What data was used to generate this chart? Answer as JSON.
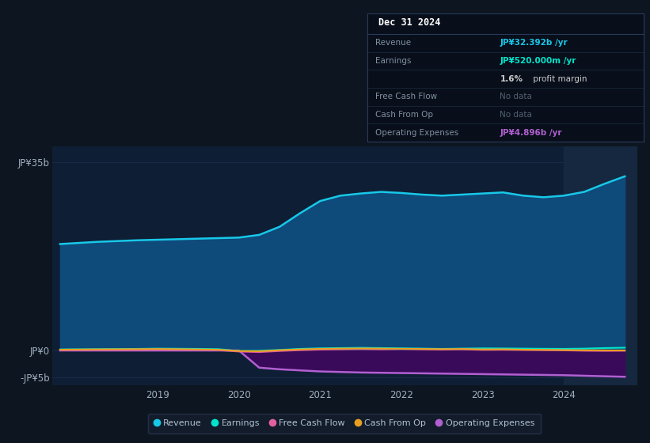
{
  "background_color": "#0d1520",
  "chart_area_color": "#0e1e35",
  "highlight_area_color": "#152840",
  "grid_color": "#1a3050",
  "years": [
    2017.8,
    2018.25,
    2018.75,
    2019.0,
    2019.5,
    2019.75,
    2020.0,
    2020.25,
    2020.5,
    2020.75,
    2021.0,
    2021.25,
    2021.5,
    2021.75,
    2022.0,
    2022.25,
    2022.5,
    2022.75,
    2023.0,
    2023.25,
    2023.5,
    2023.75,
    2024.0,
    2024.25,
    2024.5,
    2024.75
  ],
  "revenue": [
    19.8,
    20.2,
    20.5,
    20.6,
    20.8,
    20.9,
    21.0,
    21.5,
    23.0,
    25.5,
    27.8,
    28.8,
    29.2,
    29.5,
    29.3,
    29.0,
    28.8,
    29.0,
    29.2,
    29.4,
    28.8,
    28.5,
    28.8,
    29.5,
    31.0,
    32.392
  ],
  "earnings": [
    0.2,
    0.25,
    0.3,
    0.35,
    0.3,
    0.25,
    -0.1,
    -0.05,
    0.1,
    0.3,
    0.4,
    0.45,
    0.5,
    0.45,
    0.4,
    0.35,
    0.3,
    0.35,
    0.4,
    0.38,
    0.35,
    0.32,
    0.3,
    0.35,
    0.45,
    0.52
  ],
  "free_cash_flow": [
    0.05,
    0.08,
    0.1,
    0.15,
    0.1,
    0.05,
    -0.2,
    -0.3,
    -0.1,
    0.05,
    0.15,
    0.2,
    0.25,
    0.2,
    0.25,
    0.2,
    0.15,
    0.2,
    0.1,
    0.12,
    0.08,
    0.05,
    0.02,
    -0.05,
    -0.08,
    -0.05
  ],
  "cash_from_op": [
    0.15,
    0.2,
    0.25,
    0.28,
    0.2,
    0.15,
    -0.1,
    -0.15,
    0.05,
    0.2,
    0.3,
    0.35,
    0.38,
    0.35,
    0.32,
    0.28,
    0.25,
    0.28,
    0.2,
    0.22,
    0.15,
    0.12,
    0.08,
    0.05,
    0.02,
    0.0
  ],
  "op_expenses": [
    0.0,
    0.0,
    0.0,
    0.0,
    0.0,
    0.0,
    0.0,
    -3.2,
    -3.5,
    -3.7,
    -3.9,
    -4.0,
    -4.1,
    -4.15,
    -4.2,
    -4.25,
    -4.3,
    -4.35,
    -4.4,
    -4.45,
    -4.5,
    -4.55,
    -4.6,
    -4.7,
    -4.8,
    -4.896
  ],
  "revenue_color": "#18c8e8",
  "revenue_fill": "#0e4a7a",
  "earnings_color": "#00e5cc",
  "free_cash_flow_color": "#e060a0",
  "cash_from_op_color": "#e8a020",
  "op_expenses_color": "#b060d0",
  "op_expenses_fill": "#3a0a5a",
  "highlight_start": 2024.0,
  "ylim": [
    -6.5,
    38
  ],
  "yticks": [
    -5,
    0,
    35
  ],
  "ytick_labels": [
    "-JP¥5b",
    "JP¥0",
    "JP¥35b"
  ],
  "xticks": [
    2019,
    2020,
    2021,
    2022,
    2023,
    2024
  ],
  "infobox": {
    "title": "Dec 31 2024",
    "title_color": "#ffffff",
    "bg_color": "#080e1a",
    "border_color": "#2a3a5a",
    "rows": [
      {
        "label": "Revenue",
        "value": "JP¥32.392b /yr",
        "value_color": "#18c8e8",
        "label_color": "#8090a0"
      },
      {
        "label": "Earnings",
        "value": "JP¥520.000m /yr",
        "value_color": "#00e5cc",
        "label_color": "#8090a0"
      },
      {
        "label": "",
        "value": "1.6% profit margin",
        "value_color": "#cccccc",
        "label_color": "#8090a0",
        "bold_prefix": "1.6%"
      },
      {
        "label": "Free Cash Flow",
        "value": "No data",
        "value_color": "#506070",
        "label_color": "#8090a0"
      },
      {
        "label": "Cash From Op",
        "value": "No data",
        "value_color": "#506070",
        "label_color": "#8090a0"
      },
      {
        "label": "Operating Expenses",
        "value": "JP¥4.896b /yr",
        "value_color": "#b060d0",
        "label_color": "#8090a0"
      }
    ]
  },
  "legend": [
    {
      "label": "Revenue",
      "color": "#18c8e8"
    },
    {
      "label": "Earnings",
      "color": "#00e5cc"
    },
    {
      "label": "Free Cash Flow",
      "color": "#e060a0"
    },
    {
      "label": "Cash From Op",
      "color": "#e8a020"
    },
    {
      "label": "Operating Expenses",
      "color": "#b060d0"
    }
  ]
}
